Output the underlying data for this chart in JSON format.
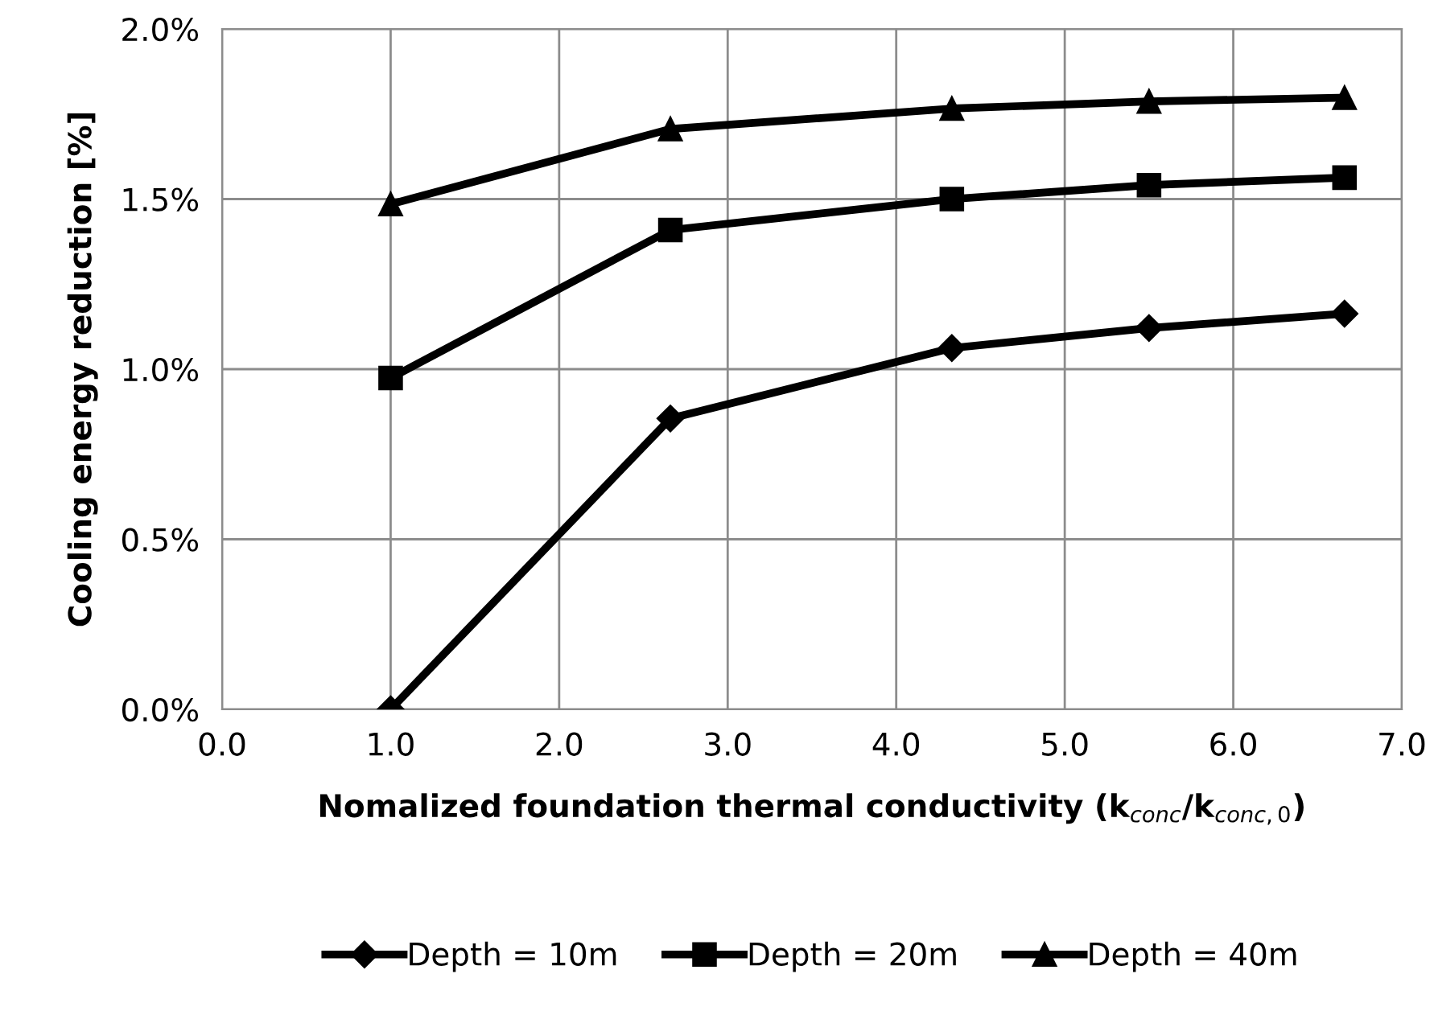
{
  "chart_data": {
    "type": "line",
    "xlabel": "Nomalized foundation thermal conductivity (k$_{conc}$/k$_{conc,0}$)",
    "ylabel": "Cooling energy reduction [%]",
    "x": [
      1.0,
      2.66,
      4.33,
      5.5,
      6.66
    ],
    "series": [
      {
        "name": "Depth = 10m",
        "color": "#000000",
        "marker": "diamond",
        "values": [
          0.0,
          0.855,
          1.062,
          1.121,
          1.163
        ]
      },
      {
        "name": "Depth = 20m",
        "color": "#000000",
        "marker": "square",
        "values": [
          0.974,
          1.409,
          1.5,
          1.541,
          1.563
        ]
      },
      {
        "name": "Depth = 40m",
        "color": "#000000",
        "marker": "triangle",
        "values": [
          1.485,
          1.706,
          1.766,
          1.787,
          1.798
        ]
      }
    ],
    "xlim": [
      0.0,
      7.0
    ],
    "xticks": [
      {
        "value": 0,
        "label": "0.0"
      },
      {
        "value": 1,
        "label": "1.0"
      },
      {
        "value": 2,
        "label": "2.0"
      },
      {
        "value": 3,
        "label": "3.0"
      },
      {
        "value": 4,
        "label": "4.0"
      },
      {
        "value": 5,
        "label": "5.0"
      },
      {
        "value": 6,
        "label": "6.0"
      },
      {
        "value": 7,
        "label": "7.0"
      }
    ],
    "ylim": [
      0.0,
      2.0
    ],
    "yticks": [
      {
        "value": 0,
        "label": "0.0%"
      },
      {
        "value": 0.5,
        "label": "0.5%"
      },
      {
        "value": 1.0,
        "label": "1.0%"
      },
      {
        "value": 1.5,
        "label": "1.5%"
      },
      {
        "value": 2.0,
        "label": "2.0%"
      }
    ],
    "grid": true,
    "legend": "bottom",
    "line_style": "solid"
  }
}
